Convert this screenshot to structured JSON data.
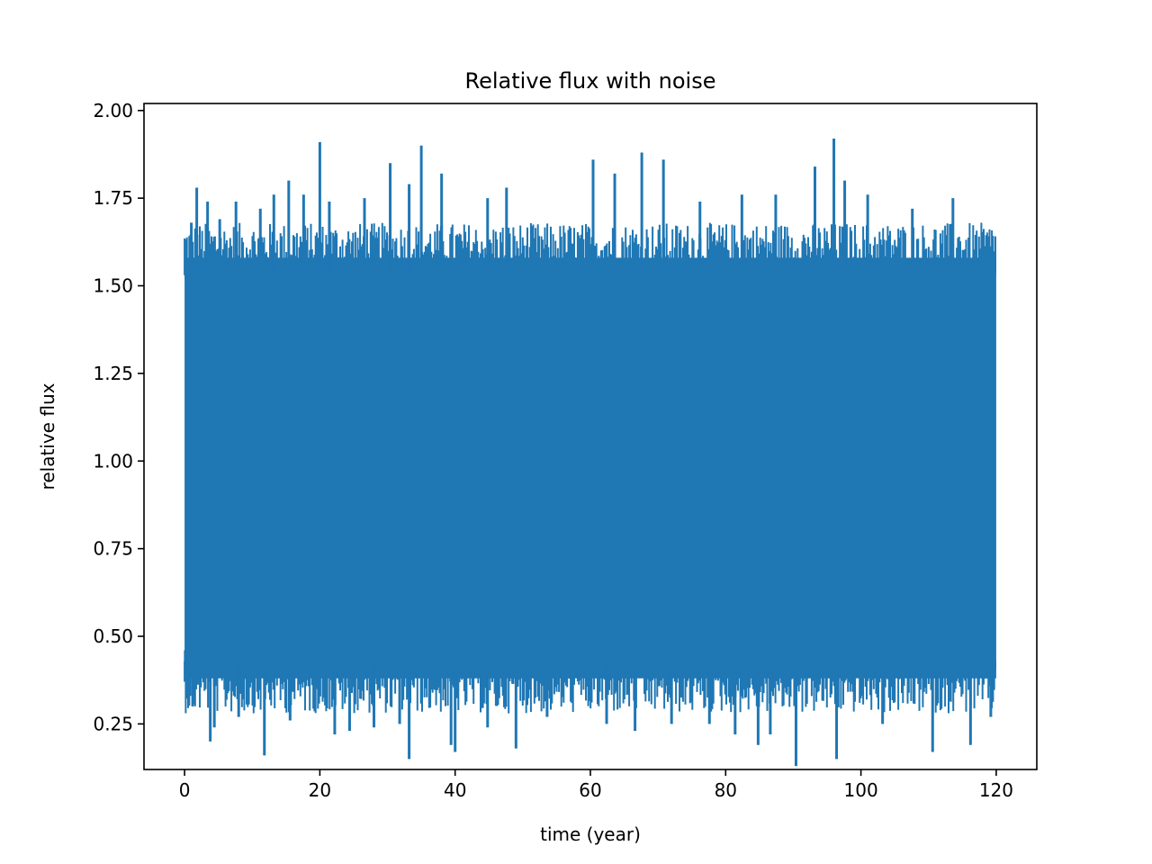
{
  "chart_data": {
    "type": "line",
    "title": "Relative flux with noise",
    "xlabel": "time (year)",
    "ylabel": "relative flux",
    "xlim": [
      -6,
      126
    ],
    "ylim": [
      0.12,
      2.02
    ],
    "xticks": [
      0,
      20,
      40,
      60,
      80,
      100,
      120
    ],
    "xtick_labels": [
      "0",
      "20",
      "40",
      "60",
      "80",
      "100",
      "120"
    ],
    "yticks": [
      0.25,
      0.5,
      0.75,
      1.0,
      1.25,
      1.5,
      1.75,
      2.0
    ],
    "ytick_labels": [
      "0.25",
      "0.50",
      "0.75",
      "1.00",
      "1.25",
      "1.50",
      "1.75",
      "2.00"
    ],
    "grid": false,
    "series": [
      {
        "color": "#1f77b4",
        "x_range": [
          0,
          120
        ],
        "baseline": 1.0,
        "typical_upper": 1.58,
        "typical_lower": 0.38,
        "peaks": [
          {
            "x": 0.2,
            "y": 1.52
          },
          {
            "x": 1.0,
            "y": 1.68
          },
          {
            "x": 1.8,
            "y": 1.78
          },
          {
            "x": 3.4,
            "y": 1.74
          },
          {
            "x": 5.2,
            "y": 1.69
          },
          {
            "x": 7.6,
            "y": 1.74
          },
          {
            "x": 11.2,
            "y": 1.72
          },
          {
            "x": 13.2,
            "y": 1.76
          },
          {
            "x": 15.4,
            "y": 1.8
          },
          {
            "x": 17.6,
            "y": 1.76
          },
          {
            "x": 20.0,
            "y": 1.91
          },
          {
            "x": 21.4,
            "y": 1.74
          },
          {
            "x": 26.6,
            "y": 1.75
          },
          {
            "x": 30.4,
            "y": 1.85
          },
          {
            "x": 33.2,
            "y": 1.79
          },
          {
            "x": 35.0,
            "y": 1.9
          },
          {
            "x": 38.0,
            "y": 1.82
          },
          {
            "x": 44.8,
            "y": 1.75
          },
          {
            "x": 47.6,
            "y": 1.78
          },
          {
            "x": 60.4,
            "y": 1.86
          },
          {
            "x": 63.6,
            "y": 1.82
          },
          {
            "x": 67.6,
            "y": 1.88
          },
          {
            "x": 70.8,
            "y": 1.86
          },
          {
            "x": 76.2,
            "y": 1.74
          },
          {
            "x": 82.4,
            "y": 1.76
          },
          {
            "x": 87.4,
            "y": 1.76
          },
          {
            "x": 93.2,
            "y": 1.84
          },
          {
            "x": 96.0,
            "y": 1.92
          },
          {
            "x": 97.6,
            "y": 1.8
          },
          {
            "x": 101.0,
            "y": 1.76
          },
          {
            "x": 107.6,
            "y": 1.72
          },
          {
            "x": 113.6,
            "y": 1.75
          }
        ],
        "troughs": [
          {
            "x": 0.1,
            "y": 0.46
          },
          {
            "x": 0.8,
            "y": 0.33
          },
          {
            "x": 1.2,
            "y": 0.3
          },
          {
            "x": 3.8,
            "y": 0.2
          },
          {
            "x": 4.4,
            "y": 0.24
          },
          {
            "x": 8.0,
            "y": 0.27
          },
          {
            "x": 11.8,
            "y": 0.16
          },
          {
            "x": 15.6,
            "y": 0.26
          },
          {
            "x": 22.2,
            "y": 0.22
          },
          {
            "x": 24.4,
            "y": 0.23
          },
          {
            "x": 28.0,
            "y": 0.24
          },
          {
            "x": 31.8,
            "y": 0.25
          },
          {
            "x": 33.2,
            "y": 0.15
          },
          {
            "x": 39.4,
            "y": 0.19
          },
          {
            "x": 40.0,
            "y": 0.17
          },
          {
            "x": 44.8,
            "y": 0.24
          },
          {
            "x": 49.0,
            "y": 0.18
          },
          {
            "x": 53.6,
            "y": 0.27
          },
          {
            "x": 62.4,
            "y": 0.25
          },
          {
            "x": 66.6,
            "y": 0.23
          },
          {
            "x": 72.0,
            "y": 0.25
          },
          {
            "x": 77.6,
            "y": 0.25
          },
          {
            "x": 81.4,
            "y": 0.22
          },
          {
            "x": 84.8,
            "y": 0.19
          },
          {
            "x": 86.6,
            "y": 0.22
          },
          {
            "x": 90.4,
            "y": 0.13
          },
          {
            "x": 96.4,
            "y": 0.15
          },
          {
            "x": 103.2,
            "y": 0.25
          },
          {
            "x": 110.6,
            "y": 0.17
          },
          {
            "x": 116.2,
            "y": 0.19
          },
          {
            "x": 119.2,
            "y": 0.27
          }
        ]
      }
    ]
  }
}
